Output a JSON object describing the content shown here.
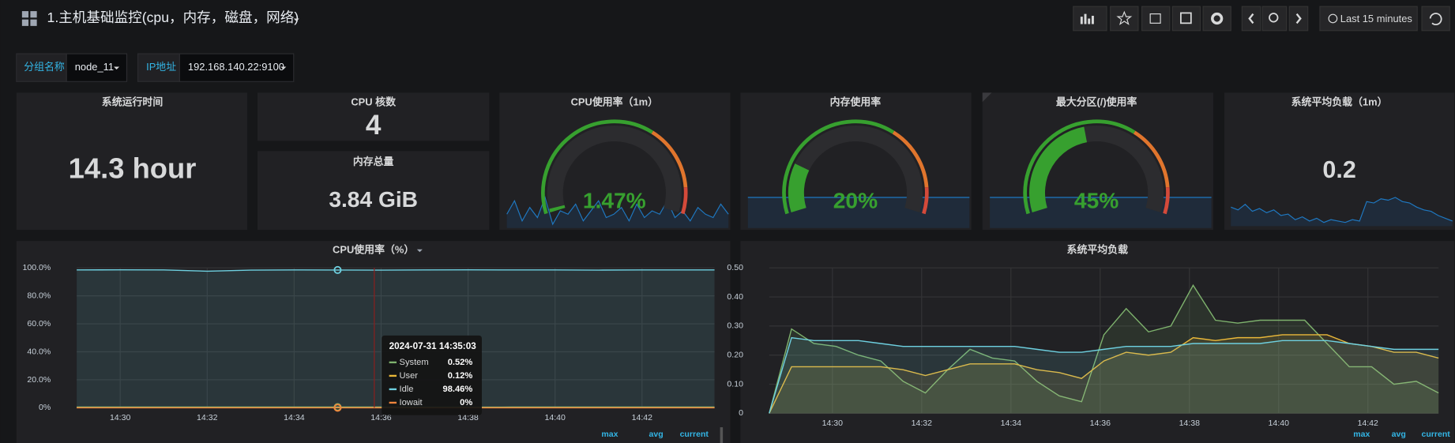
{
  "header": {
    "title": "1.主机基础监控(cpu，内存，磁盘，网络)",
    "time_range": "Last 15 minutes"
  },
  "variables": [
    {
      "label": "分组名称",
      "value": "node_11"
    },
    {
      "label": "IP地址",
      "value": "192.168.140.22:9100"
    }
  ],
  "stats": [
    {
      "title": "系统运行时间",
      "value": 14.3,
      "value_label": "14.3 hour"
    },
    {
      "title": "CPU 核数",
      "value": 4
    },
    {
      "title": "内存总量",
      "value": 3.84,
      "value_label": "3.84 GiB"
    },
    {
      "title": "系统平均负载（1m）",
      "value": 0.2,
      "color": "#1f78c1",
      "sparkline": [
        0.24,
        0.22,
        0.26,
        0.21,
        0.23,
        0.2,
        0.22,
        0.18,
        0.19,
        0.15,
        0.17,
        0.14,
        0.16,
        0.13,
        0.15,
        0.14,
        0.13,
        0.15,
        0.14,
        0.28,
        0.27,
        0.3,
        0.29,
        0.31,
        0.28,
        0.27,
        0.24,
        0.22,
        0.21,
        0.18,
        0.16,
        0.14
      ]
    }
  ],
  "gauges": [
    {
      "title": "CPU使用率（1m）",
      "value": 1.47,
      "value_label": "1.47%",
      "range": [
        0,
        100
      ],
      "thresholds": [
        65,
        90
      ],
      "colors": [
        "#37a02f",
        "#e0752d",
        "#d44a3a"
      ],
      "sparkline": [
        1.5,
        1.9,
        1.3,
        1.7,
        1.4,
        2.0,
        1.2,
        1.6,
        1.5,
        1.8,
        1.3,
        1.6,
        1.9,
        1.4,
        1.5,
        1.7,
        1.3,
        1.8,
        1.4,
        1.6,
        1.5,
        1.9,
        1.4,
        1.6,
        1.3,
        1.7,
        1.5,
        1.4,
        1.8,
        1.5
      ]
    },
    {
      "title": "内存使用率",
      "value": 20,
      "value_label": "20%",
      "range": [
        0,
        100
      ],
      "thresholds": [
        65,
        90
      ],
      "colors": [
        "#37a02f",
        "#e0752d",
        "#d44a3a"
      ]
    },
    {
      "title": "最大分区(/)使用率",
      "value": 45,
      "value_label": "45%",
      "range": [
        0,
        100
      ],
      "thresholds": [
        65,
        90
      ],
      "colors": [
        "#37a02f",
        "#e0752d",
        "#d44a3a"
      ]
    }
  ],
  "charts": [
    {
      "type": "line",
      "title": "CPU使用率（%）",
      "x": [
        "14:29:00",
        "14:30:00",
        "14:31:00",
        "14:32:00",
        "14:33:00",
        "14:34:00",
        "14:35:00",
        "14:36:00",
        "14:37:00",
        "14:38:00",
        "14:39:00",
        "14:40:00",
        "14:41:00",
        "14:42:00",
        "14:43:00",
        "14:43:40"
      ],
      "series": [
        {
          "name": "System",
          "color": "#7eb26d",
          "values": [
            0.5,
            0.52,
            0.5,
            0.55,
            0.5,
            0.51,
            0.52,
            0.5,
            0.5,
            0.49,
            0.5,
            0.51,
            0.5,
            0.5,
            0.5,
            0.5
          ]
        },
        {
          "name": "User",
          "color": "#eab839",
          "values": [
            0.12,
            0.12,
            0.13,
            0.14,
            0.12,
            0.11,
            0.12,
            0.12,
            0.12,
            0.11,
            0.12,
            0.12,
            0.12,
            0.12,
            0.12,
            0.12
          ]
        },
        {
          "name": "Idle",
          "color": "#6ed0e0",
          "values": [
            98.5,
            98.6,
            98.5,
            97.6,
            98.4,
            98.5,
            98.46,
            98.4,
            98.5,
            98.6,
            98.5,
            98.5,
            98.4,
            98.5,
            98.5,
            98.5
          ]
        },
        {
          "name": "Iowait",
          "color": "#ef843c",
          "values": [
            0,
            0,
            0,
            0,
            0,
            0,
            0,
            0,
            0,
            0,
            0,
            0,
            0,
            0,
            0,
            0
          ]
        }
      ],
      "xlim": [
        "14:29:00",
        "14:43:40"
      ],
      "ylim": [
        0,
        100
      ],
      "yticks": [
        {
          "value": 0,
          "label": "0%"
        },
        {
          "value": 20,
          "label": "20.0%"
        },
        {
          "value": 40,
          "label": "40.0%"
        },
        {
          "value": 60,
          "label": "60.0%"
        },
        {
          "value": 80,
          "label": "80.0%"
        },
        {
          "value": 100,
          "label": "100.0%"
        }
      ],
      "xticks": [
        "14:30",
        "14:32",
        "14:34",
        "14:36",
        "14:38",
        "14:40",
        "14:42"
      ],
      "grid": true,
      "legend_columns": [
        "max",
        "avg",
        "current"
      ],
      "tooltip": {
        "time": "2024-07-31 14:35:03",
        "x": "14:35:00",
        "values": [
          0.52,
          0.12,
          98.46,
          0
        ],
        "value_labels": [
          "0.52%",
          "0.12%",
          "98.46%",
          "0%"
        ]
      }
    },
    {
      "type": "line",
      "title": "系统平均负载",
      "x": [
        "14:28:35",
        "14:29:05",
        "14:29:35",
        "14:30:05",
        "14:30:35",
        "14:31:05",
        "14:31:35",
        "14:32:05",
        "14:32:35",
        "14:33:05",
        "14:33:35",
        "14:34:05",
        "14:34:35",
        "14:35:05",
        "14:35:35",
        "14:36:05",
        "14:36:35",
        "14:37:05",
        "14:37:35",
        "14:38:05",
        "14:38:35",
        "14:39:05",
        "14:39:35",
        "14:40:05",
        "14:40:35",
        "14:41:05",
        "14:41:35",
        "14:42:05",
        "14:42:35",
        "14:43:05",
        "14:43:35"
      ],
      "series": [
        {
          "color": "#7eb26d",
          "values": [
            0,
            0.29,
            0.24,
            0.23,
            0.2,
            0.18,
            0.11,
            0.07,
            0.15,
            0.22,
            0.19,
            0.18,
            0.11,
            0.06,
            0.04,
            0.27,
            0.36,
            0.28,
            0.3,
            0.44,
            0.32,
            0.31,
            0.32,
            0.32,
            0.32,
            0.24,
            0.16,
            0.16,
            0.1,
            0.11,
            0.07
          ]
        },
        {
          "color": "#eab839",
          "values": [
            0,
            0.16,
            0.16,
            0.16,
            0.16,
            0.16,
            0.15,
            0.13,
            0.15,
            0.17,
            0.17,
            0.17,
            0.15,
            0.14,
            0.12,
            0.18,
            0.21,
            0.2,
            0.21,
            0.26,
            0.25,
            0.26,
            0.26,
            0.27,
            0.27,
            0.27,
            0.24,
            0.23,
            0.21,
            0.21,
            0.19
          ]
        },
        {
          "color": "#6ed0e0",
          "values": [
            0,
            0.26,
            0.25,
            0.25,
            0.25,
            0.24,
            0.23,
            0.23,
            0.23,
            0.23,
            0.23,
            0.23,
            0.22,
            0.21,
            0.21,
            0.22,
            0.23,
            0.23,
            0.23,
            0.24,
            0.24,
            0.24,
            0.24,
            0.25,
            0.25,
            0.25,
            0.24,
            0.23,
            0.22,
            0.22,
            0.22
          ]
        }
      ],
      "xlim": [
        "14:28:35",
        "14:43:35"
      ],
      "ylim": [
        0,
        0.5
      ],
      "yticks": [
        0,
        {
          "value": 0.1,
          "label": "0.10"
        },
        {
          "value": 0.2,
          "label": "0.20"
        },
        {
          "value": 0.3,
          "label": "0.30"
        },
        {
          "value": 0.4,
          "label": "0.40"
        },
        {
          "value": 0.5,
          "label": "0.50"
        }
      ],
      "xticks": [
        "14:30",
        "14:32",
        "14:34",
        "14:36",
        "14:38",
        "14:40",
        "14:42"
      ],
      "grid": true,
      "legend_columns": [
        "max",
        "avg",
        "current"
      ]
    }
  ]
}
